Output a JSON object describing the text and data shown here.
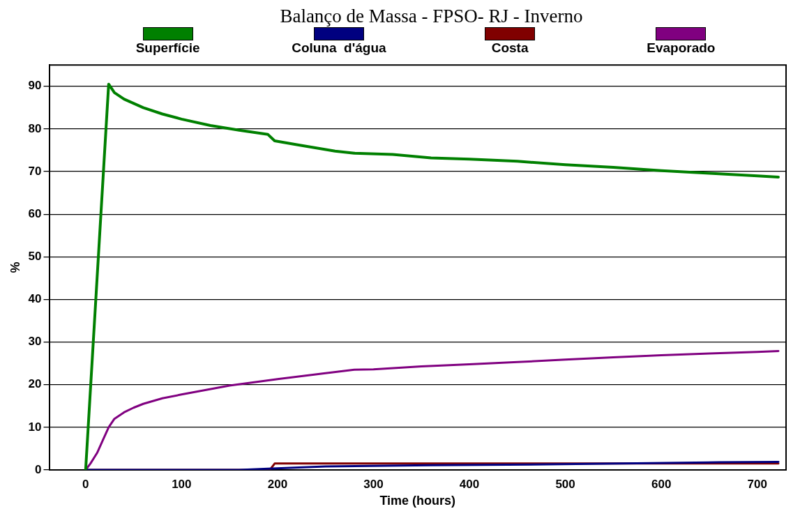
{
  "chart_data": {
    "type": "line",
    "title": "Balanço de Massa - FPSO- RJ - Inverno",
    "xlabel": "Time (hours)",
    "ylabel": "%",
    "xlim": [
      -38,
      730
    ],
    "xticks": [
      0,
      100,
      200,
      300,
      400,
      500,
      600,
      700
    ],
    "ylim": [
      0,
      95
    ],
    "yticks": [
      0,
      10,
      20,
      30,
      40,
      50,
      60,
      70,
      80,
      90
    ],
    "grid": "y",
    "legend": "top",
    "marker": "none",
    "line_style": "solid",
    "series": [
      {
        "name": "Superfície",
        "color": "#008000",
        "x": [
          0,
          24,
          30,
          40,
          60,
          80,
          100,
          130,
          160,
          190,
          197,
          220,
          260,
          280,
          320,
          360,
          400,
          450,
          500,
          550,
          600,
          650,
          700,
          722
        ],
        "values": [
          0,
          90.5,
          88.5,
          87,
          85,
          83.5,
          82.3,
          80.8,
          79.7,
          78.7,
          77.2,
          76.3,
          74.8,
          74.3,
          74,
          73.2,
          72.9,
          72.4,
          71.6,
          71,
          70.2,
          69.6,
          69,
          68.7
        ]
      },
      {
        "name": "Coluna  d'água",
        "color": "#000080",
        "x": [
          0,
          160,
          190,
          250,
          360,
          480,
          590,
          660,
          722
        ],
        "values": [
          0,
          0,
          0.3,
          0.8,
          1.1,
          1.3,
          1.6,
          1.8,
          1.9
        ]
      },
      {
        "name": "Costa",
        "color": "#800000",
        "x": [
          0,
          192,
          197,
          722
        ],
        "values": [
          0,
          0,
          1.5,
          1.5
        ]
      },
      {
        "name": "Evaporado",
        "color": "#800080",
        "x": [
          0,
          5,
          12,
          18,
          24,
          30,
          40,
          50,
          60,
          80,
          100,
          150,
          200,
          250,
          280,
          300,
          350,
          400,
          450,
          500,
          550,
          600,
          650,
          700,
          722
        ],
        "values": [
          0,
          1.5,
          4,
          7,
          10,
          12,
          13.5,
          14.6,
          15.5,
          16.8,
          17.7,
          19.8,
          21.3,
          22.7,
          23.5,
          23.6,
          24.3,
          24.8,
          25.3,
          25.9,
          26.4,
          26.9,
          27.3,
          27.7,
          27.9
        ]
      }
    ]
  }
}
